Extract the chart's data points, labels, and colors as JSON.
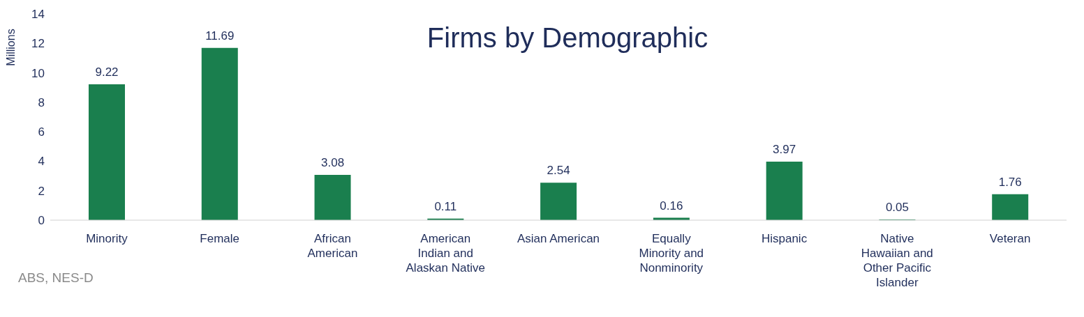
{
  "chart_data": {
    "type": "bar",
    "title": "Firms by Demographic",
    "ylabel": "Millions",
    "categories": [
      "Minority",
      "Female",
      "African American",
      "American Indian and Alaskan Native",
      "Asian American",
      "Equally Minority and Nonminority",
      "Hispanic",
      "Native Hawaiian and Other Pacific Islander",
      "Veteran"
    ],
    "values": [
      9.22,
      11.69,
      3.08,
      0.11,
      2.54,
      0.16,
      3.97,
      0.05,
      1.76
    ],
    "color": "#1a7f4e",
    "ylim": [
      0,
      14
    ],
    "yticks": [
      0,
      2,
      4,
      6,
      8,
      10,
      12,
      14
    ],
    "grid": false,
    "data_labels": true,
    "annotations": [
      "ABS, NES-D"
    ]
  }
}
